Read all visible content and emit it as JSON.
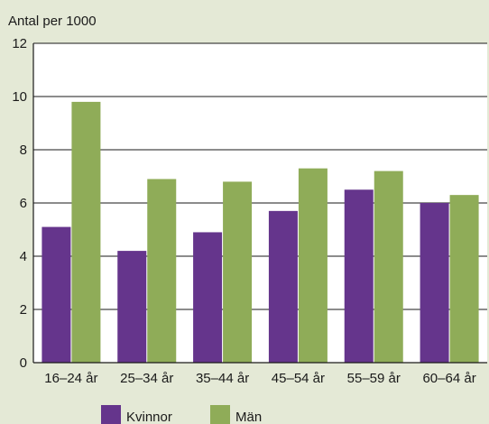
{
  "chart_data": {
    "type": "bar",
    "title": "",
    "unit_label": "Antal per 1000",
    "xlabel": "",
    "ylabel": "",
    "categories": [
      "16–24 år",
      "25–34 år",
      "35–44 år",
      "45–54 år",
      "55–59 år",
      "60–64 år"
    ],
    "series": [
      {
        "name": "Kvinnor",
        "color": "#65358c",
        "values": [
          5.1,
          4.2,
          4.9,
          5.7,
          6.5,
          6.0
        ]
      },
      {
        "name": "Män",
        "color": "#8fac58",
        "values": [
          9.8,
          6.9,
          6.8,
          7.3,
          7.2,
          6.3
        ]
      }
    ],
    "ylim": [
      0,
      12
    ],
    "yticks": [
      0,
      2,
      4,
      6,
      8,
      10,
      12
    ],
    "grid": true,
    "legend_position": "bottom"
  },
  "colors": {
    "background": "#e4e9d6",
    "plot_background": "#ffffff",
    "gridline": "#1a1a1a"
  }
}
